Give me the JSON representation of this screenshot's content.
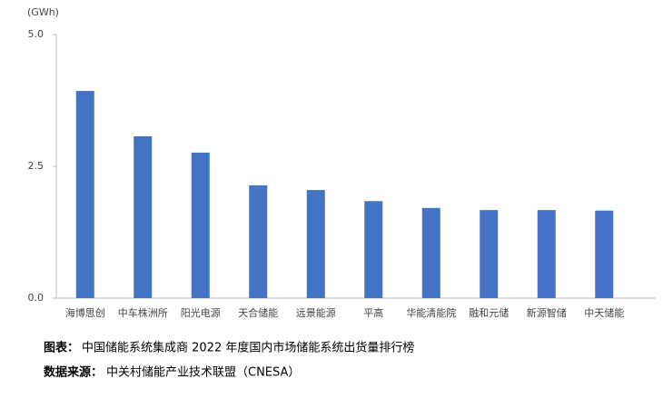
{
  "chart_data": {
    "type": "bar",
    "unit_label": "(GWh)",
    "categories": [
      "海博思创",
      "中车株洲所",
      "阳光电源",
      "天合储能",
      "远景能源",
      "平高",
      "华能清能院",
      "融和元储",
      "新源智储",
      "中天储能"
    ],
    "values": [
      3.93,
      3.07,
      2.76,
      2.14,
      2.05,
      1.84,
      1.71,
      1.67,
      1.67,
      1.66
    ],
    "color": "#4472c4",
    "ylim": [
      0,
      5
    ],
    "yticks": [
      {
        "value": 0,
        "label": "0.0"
      },
      {
        "value": 2.5,
        "label": "2.5"
      },
      {
        "value": 5,
        "label": "5.0"
      }
    ],
    "grid": false
  },
  "caption": {
    "title_label": "图表：",
    "title_text": "中国储能系统集成商 2022 年度国内市场储能系统出货量排行榜",
    "source_label": "数据来源：",
    "source_text": "中关村储能产业技术联盟（CNESA）"
  }
}
